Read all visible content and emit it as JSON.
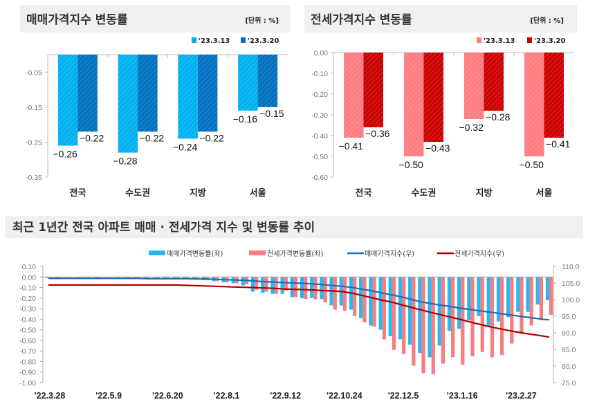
{
  "chart_data": [
    {
      "type": "bar",
      "title": "매매가격지수 변동률",
      "unit": "[단위 : %]",
      "categories": [
        "전국",
        "수도권",
        "지방",
        "서울"
      ],
      "series": [
        {
          "name": "'23.3.13",
          "values": [
            -0.26,
            -0.28,
            -0.24,
            -0.16
          ],
          "color": "#00b0f0"
        },
        {
          "name": "'23.3.20",
          "values": [
            -0.22,
            -0.22,
            -0.22,
            -0.15
          ],
          "color": "#0070c0"
        }
      ],
      "yticks": [
        "-0.05",
        "-0.15",
        "-0.25",
        "-0.35"
      ],
      "ylim": [
        -0.35,
        0
      ],
      "legend": "top-right",
      "grid": false
    },
    {
      "type": "bar",
      "title": "전세가격지수 변동률",
      "unit": "[단위 : %]",
      "categories": [
        "전국",
        "수도권",
        "지방",
        "서울"
      ],
      "series": [
        {
          "name": "'23.3.13",
          "values": [
            -0.41,
            -0.5,
            -0.32,
            -0.5
          ],
          "color": "#ff7c80"
        },
        {
          "name": "'23.3.20",
          "values": [
            -0.36,
            -0.43,
            -0.28,
            -0.41
          ],
          "color": "#cc0000"
        }
      ],
      "yticks": [
        "0.00",
        "-0.10",
        "-0.20",
        "-0.30",
        "-0.40",
        "-0.50",
        "-0.60"
      ],
      "ylim": [
        -0.6,
        0
      ],
      "legend": "top-right",
      "grid": false
    },
    {
      "type": "bar+line",
      "title": "최근 1년간 전국 아파트 매매 · 전세가격 지수 및 변동률 추이",
      "xticks": [
        "'22.3.28",
        "'22.5.9",
        "'22.6.20",
        "'22.8.1",
        "'22.9.12",
        "'22.10.24",
        "'22.12.5",
        "'23.1.16",
        "'23.2.27"
      ],
      "left_yticks": [
        "0.10",
        "0.00",
        "-0.10",
        "-0.20",
        "-0.30",
        "-0.40",
        "-0.50",
        "-0.60",
        "-0.70",
        "-0.80",
        "-0.90",
        "-1.00"
      ],
      "right_yticks": [
        "110.0",
        "105.0",
        "100.0",
        "95.0",
        "90.0",
        "85.0",
        "80.0",
        "75.0"
      ],
      "left_ylim": [
        -1.0,
        0.1
      ],
      "right_ylim": [
        75,
        110
      ],
      "legend": "top",
      "series": [
        {
          "name": "매매가격변동률(좌)",
          "type": "bar",
          "axis": "left",
          "color": "#28b8f0",
          "values": [
            -0.01,
            -0.01,
            0.0,
            0.0,
            -0.01,
            -0.01,
            0.0,
            0.0,
            -0.01,
            -0.01,
            -0.01,
            -0.01,
            -0.02,
            -0.02,
            -0.02,
            -0.02,
            -0.03,
            -0.04,
            -0.05,
            -0.06,
            -0.08,
            -0.14,
            -0.15,
            -0.16,
            -0.16,
            -0.19,
            -0.2,
            -0.2,
            -0.21,
            -0.27,
            -0.27,
            -0.31,
            -0.39,
            -0.46,
            -0.5,
            -0.56,
            -0.59,
            -0.64,
            -0.72,
            -0.76,
            -0.65,
            -0.51,
            -0.49,
            -0.41,
            -0.37,
            -0.47,
            -0.42,
            -0.38,
            -0.33,
            -0.33,
            -0.26,
            -0.22
          ]
        },
        {
          "name": "전세가격변동률(좌)",
          "type": "bar",
          "axis": "left",
          "color": "#f87c80",
          "values": [
            -0.01,
            -0.01,
            -0.01,
            -0.01,
            -0.01,
            -0.01,
            -0.01,
            -0.01,
            -0.01,
            -0.01,
            -0.01,
            -0.02,
            -0.02,
            -0.02,
            -0.02,
            -0.02,
            -0.03,
            -0.04,
            -0.05,
            -0.06,
            -0.07,
            -0.12,
            -0.14,
            -0.16,
            -0.13,
            -0.19,
            -0.21,
            -0.21,
            -0.24,
            -0.31,
            -0.32,
            -0.37,
            -0.43,
            -0.47,
            -0.59,
            -0.69,
            -0.73,
            -0.84,
            -0.91,
            -0.92,
            -0.82,
            -0.76,
            -0.83,
            -0.75,
            -0.71,
            -0.76,
            -0.74,
            -0.63,
            -0.54,
            -0.46,
            -0.41,
            -0.36
          ]
        },
        {
          "name": "매매가격지수(우)",
          "type": "line",
          "axis": "right",
          "color": "#1f6cb8",
          "values": [
            106.4,
            106.4,
            106.4,
            106.4,
            106.4,
            106.4,
            106.4,
            106.4,
            106.4,
            106.4,
            106.3,
            106.3,
            106.3,
            106.3,
            106.3,
            106.2,
            106.2,
            106.1,
            106.0,
            105.9,
            105.8,
            105.6,
            105.4,
            105.3,
            105.1,
            105.0,
            104.9,
            104.7,
            104.5,
            104.2,
            104.0,
            103.6,
            103.1,
            102.6,
            102.0,
            101.4,
            100.8,
            100.0,
            99.3,
            98.8,
            98.3,
            97.9,
            97.4,
            97.0,
            96.6,
            96.2,
            95.8,
            95.4,
            95.0,
            94.6,
            94.2,
            93.9
          ]
        },
        {
          "name": "전세가격지수(우)",
          "type": "line",
          "axis": "right",
          "color": "#b00000",
          "values": [
            104.4,
            104.4,
            104.4,
            104.4,
            104.4,
            104.4,
            104.4,
            104.4,
            104.4,
            104.4,
            104.4,
            104.4,
            104.4,
            104.4,
            104.3,
            104.2,
            104.1,
            104.0,
            103.9,
            103.8,
            103.7,
            103.6,
            103.5,
            103.4,
            103.2,
            103.1,
            103.0,
            102.9,
            102.7,
            102.6,
            102.4,
            101.9,
            101.2,
            100.5,
            99.8,
            99.2,
            98.4,
            97.6,
            96.9,
            96.1,
            95.4,
            94.7,
            94.0,
            93.2,
            92.5,
            91.8,
            91.2,
            90.6,
            90.1,
            89.6,
            89.2,
            88.7
          ]
        }
      ]
    }
  ]
}
